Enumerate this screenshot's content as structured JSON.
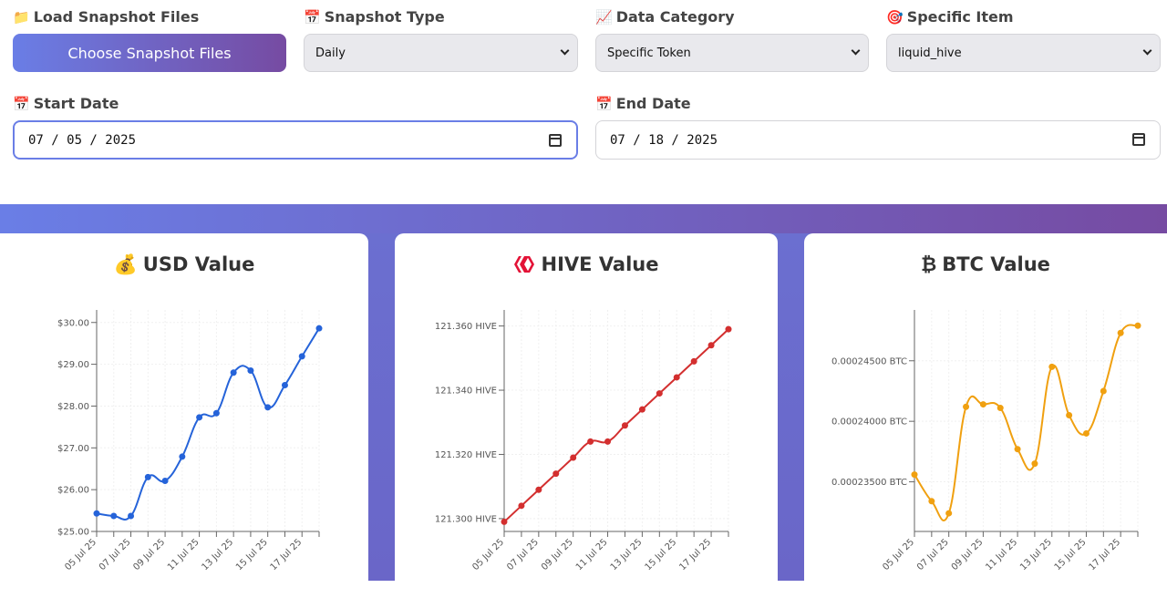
{
  "controls": {
    "load": {
      "emoji": "📁",
      "label": "Load Snapshot Files",
      "button": "Choose Snapshot Files"
    },
    "snapshot_type": {
      "emoji": "📅",
      "label": "Snapshot Type",
      "value": "Daily"
    },
    "data_category": {
      "emoji": "📈",
      "label": "Data Category",
      "value": "Specific Token"
    },
    "specific_item": {
      "emoji": "🎯",
      "label": "Specific Item",
      "value": "liquid_hive"
    },
    "start_date": {
      "emoji": "📅",
      "label": "Start Date",
      "value": "07 / 05 / 2025"
    },
    "end_date": {
      "emoji": "📅",
      "label": "End Date",
      "value": "07 / 18 / 2025"
    }
  },
  "cards": {
    "usd": {
      "emoji": "💰",
      "title": "USD Value",
      "color": "#2563d9"
    },
    "hive": {
      "title": "HIVE Value",
      "color": "#d32f2f"
    },
    "btc": {
      "emoji": "₿",
      "title": "BTC Value",
      "color": "#f0a010"
    }
  },
  "chart_data": [
    {
      "type": "line",
      "title": "USD Value",
      "x": [
        "05 Jul 25",
        "06 Jul 25",
        "07 Jul 25",
        "08 Jul 25",
        "09 Jul 25",
        "10 Jul 25",
        "11 Jul 25",
        "12 Jul 25",
        "13 Jul 25",
        "14 Jul 25",
        "15 Jul 25",
        "16 Jul 25",
        "17 Jul 25",
        "18 Jul 25"
      ],
      "x_tick_labels": [
        "05 Jul 25",
        "07 Jul 25",
        "09 Jul 25",
        "11 Jul 25",
        "13 Jul 25",
        "15 Jul 25",
        "17 Jul 25"
      ],
      "y": [
        25.43,
        25.37,
        25.37,
        26.3,
        26.21,
        26.79,
        27.73,
        27.83,
        28.8,
        28.85,
        27.97,
        28.5,
        29.19,
        29.86
      ],
      "y_ticks": [
        25,
        26,
        27,
        28,
        29,
        30
      ],
      "y_tick_labels": [
        "$25.00",
        "$26.00",
        "$27.00",
        "$28.00",
        "$29.00",
        "$30.00"
      ],
      "ylim": [
        25,
        30.3
      ],
      "grid": true
    },
    {
      "type": "line",
      "title": "HIVE Value",
      "x": [
        "05 Jul 25",
        "06 Jul 25",
        "07 Jul 25",
        "08 Jul 25",
        "09 Jul 25",
        "10 Jul 25",
        "11 Jul 25",
        "12 Jul 25",
        "13 Jul 25",
        "14 Jul 25",
        "15 Jul 25",
        "16 Jul 25",
        "17 Jul 25",
        "18 Jul 25"
      ],
      "x_tick_labels": [
        "05 Jul 25",
        "07 Jul 25",
        "09 Jul 25",
        "11 Jul 25",
        "13 Jul 25",
        "15 Jul 25",
        "17 Jul 25"
      ],
      "y": [
        121.299,
        121.304,
        121.309,
        121.314,
        121.319,
        121.324,
        121.324,
        121.329,
        121.334,
        121.339,
        121.344,
        121.349,
        121.354,
        121.359
      ],
      "y_ticks": [
        121.3,
        121.32,
        121.34,
        121.36
      ],
      "y_tick_labels": [
        "121.300 HIVE",
        "121.320 HIVE",
        "121.340 HIVE",
        "121.360 HIVE"
      ],
      "ylim": [
        121.296,
        121.365
      ],
      "grid": true
    },
    {
      "type": "line",
      "title": "BTC Value",
      "x": [
        "05 Jul 25",
        "06 Jul 25",
        "07 Jul 25",
        "08 Jul 25",
        "09 Jul 25",
        "10 Jul 25",
        "11 Jul 25",
        "12 Jul 25",
        "13 Jul 25",
        "14 Jul 25",
        "15 Jul 25",
        "16 Jul 25",
        "17 Jul 25",
        "18 Jul 25"
      ],
      "x_tick_labels": [
        "05 Jul 25",
        "07 Jul 25",
        "09 Jul 25",
        "11 Jul 25",
        "13 Jul 25",
        "15 Jul 25",
        "17 Jul 25"
      ],
      "y": [
        0.0002356,
        0.0002334,
        0.0002324,
        0.0002412,
        0.0002414,
        0.0002411,
        0.0002377,
        0.0002365,
        0.0002445,
        0.0002405,
        0.000239,
        0.0002425,
        0.0002473,
        0.0002479
      ],
      "y_ticks": [
        0.000235,
        0.00024,
        0.000245
      ],
      "y_tick_labels": [
        "0.00023500 BTC",
        "0.00024000 BTC",
        "0.00024500 BTC"
      ],
      "ylim": [
        0.0002309,
        0.0002492
      ],
      "grid": true
    }
  ]
}
